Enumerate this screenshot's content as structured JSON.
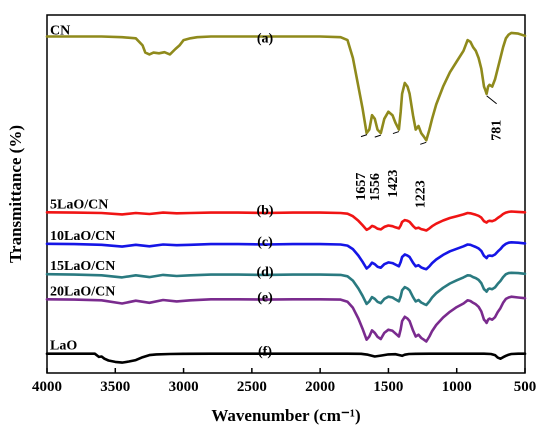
{
  "chart_data": {
    "type": "line",
    "title": "",
    "xlabel": "Wavenumber (cm⁻¹)",
    "ylabel": "Transmittance (%)",
    "xlim": [
      4000,
      500
    ],
    "x_ticks": [
      "4000",
      "3500",
      "3000",
      "2500",
      "2000",
      "1500",
      "1000",
      "500"
    ],
    "x_tick_values": [
      4000,
      3500,
      3000,
      2500,
      2000,
      1500,
      1000,
      500
    ],
    "y_ticks": false,
    "grid": false,
    "legend": "inline labels at left",
    "peak_annotations": [
      {
        "label": "1657",
        "x": 1657
      },
      {
        "label": "1556",
        "x": 1556
      },
      {
        "label": "1423",
        "x": 1423
      },
      {
        "label": "1223",
        "x": 1223
      },
      {
        "label": "781",
        "x": 781
      }
    ],
    "series": [
      {
        "name": "CN",
        "letter": "(a)",
        "color": "#8f8a1c",
        "x": [
          4000,
          3800,
          3600,
          3450,
          3350,
          3300,
          3280,
          3250,
          3220,
          3180,
          3140,
          3100,
          3060,
          3030,
          3000,
          2950,
          2900,
          2800,
          2600,
          2400,
          2200,
          2000,
          1850,
          1800,
          1760,
          1720,
          1690,
          1660,
          1640,
          1620,
          1600,
          1580,
          1556,
          1530,
          1500,
          1470,
          1450,
          1423,
          1410,
          1400,
          1380,
          1360,
          1345,
          1320,
          1300,
          1280,
          1260,
          1240,
          1223,
          1200,
          1180,
          1150,
          1100,
          1050,
          1000,
          950,
          920,
          900,
          880,
          860,
          840,
          820,
          800,
          790,
          781,
          770,
          760,
          740,
          720,
          700,
          680,
          660,
          640,
          620,
          600,
          550,
          500
        ],
        "y": [
          94,
          94,
          94,
          93.8,
          93.5,
          91.5,
          89.5,
          89,
          89.5,
          89.3,
          89.6,
          89,
          90.5,
          91.5,
          93,
          93.5,
          93.8,
          94,
          94,
          94,
          94,
          94,
          93.8,
          93,
          88,
          80,
          74,
          67,
          68,
          72,
          71,
          68,
          67,
          71,
          73,
          72,
          70,
          68,
          73,
          78,
          81,
          80,
          78,
          72,
          68,
          69,
          67,
          66,
          65,
          68,
          71,
          75,
          80,
          84,
          87,
          90,
          93,
          92.5,
          91,
          90,
          88,
          85,
          80,
          79,
          78,
          80,
          80.5,
          80,
          82,
          85,
          88,
          91,
          93.5,
          94.5,
          95,
          94.8,
          94.2
        ]
      },
      {
        "name": "5LaO/CN",
        "letter": "(b)",
        "color": "#f01414",
        "x": [
          4000,
          3800,
          3600,
          3450,
          3350,
          3250,
          3150,
          3050,
          2950,
          2800,
          2600,
          2400,
          2200,
          2000,
          1850,
          1800,
          1760,
          1720,
          1690,
          1660,
          1640,
          1620,
          1600,
          1580,
          1556,
          1530,
          1500,
          1470,
          1450,
          1423,
          1410,
          1400,
          1380,
          1360,
          1345,
          1320,
          1300,
          1280,
          1260,
          1240,
          1223,
          1200,
          1180,
          1150,
          1100,
          1050,
          1000,
          950,
          920,
          900,
          880,
          860,
          840,
          820,
          800,
          790,
          781,
          770,
          760,
          740,
          720,
          700,
          680,
          660,
          640,
          620,
          600,
          550,
          500
        ],
        "y": [
          44.9,
          44.8,
          44.7,
          44.3,
          44.7,
          44.4,
          44.8,
          44.6,
          44.7,
          44.8,
          44.8,
          44.7,
          44.8,
          44.8,
          44.7,
          44.5,
          43.8,
          42.5,
          41.3,
          40,
          40.4,
          41.1,
          40.8,
          40.3,
          40.1,
          40.8,
          41.2,
          41,
          40.7,
          40.4,
          41.2,
          42.2,
          42.7,
          42.5,
          42.2,
          41.1,
          40.4,
          40.6,
          40.2,
          40,
          39.8,
          40.4,
          41,
          41.7,
          42.6,
          43.3,
          43.8,
          44.3,
          44.7,
          44.6,
          44.4,
          44.2,
          43.9,
          43.4,
          42.4,
          42.2,
          42,
          42.4,
          42.5,
          42.4,
          42.7,
          43.3,
          43.8,
          44.4,
          44.8,
          45,
          45.1,
          45,
          44.9
        ]
      },
      {
        "name": "10LaO/CN",
        "letter": "(c)",
        "color": "#1515e6",
        "x": [
          4000,
          3800,
          3600,
          3450,
          3350,
          3250,
          3150,
          3050,
          2950,
          2800,
          2600,
          2400,
          2200,
          2000,
          1850,
          1800,
          1760,
          1720,
          1690,
          1660,
          1640,
          1620,
          1600,
          1580,
          1556,
          1530,
          1500,
          1470,
          1450,
          1423,
          1410,
          1400,
          1380,
          1360,
          1345,
          1320,
          1300,
          1280,
          1260,
          1240,
          1223,
          1200,
          1180,
          1150,
          1100,
          1050,
          1000,
          950,
          920,
          900,
          880,
          860,
          840,
          820,
          800,
          790,
          781,
          770,
          760,
          740,
          720,
          700,
          680,
          660,
          640,
          620,
          600,
          550,
          500
        ],
        "y": [
          36.1,
          36,
          35.8,
          35.3,
          35.8,
          35.4,
          35.9,
          35.7,
          35.8,
          36,
          36,
          35.9,
          36,
          36,
          35.9,
          35.6,
          34.6,
          32.8,
          31.1,
          29.2,
          29.8,
          30.8,
          30.4,
          29.7,
          29.4,
          30.4,
          30.9,
          30.7,
          30.3,
          29.8,
          31,
          32.4,
          33.1,
          32.8,
          32.4,
          30.8,
          29.8,
          30.1,
          29.5,
          29.2,
          29,
          29.8,
          30.7,
          31.7,
          33,
          34,
          34.7,
          35.4,
          35.9,
          35.8,
          35.5,
          35.2,
          34.8,
          34.1,
          32.7,
          32.4,
          32.1,
          32.7,
          32.8,
          32.7,
          33.1,
          33.9,
          34.6,
          35.5,
          36.1,
          36.4,
          36.5,
          36.4,
          36.2
        ]
      },
      {
        "name": "15LaO/CN",
        "letter": "(d)",
        "color": "#2a7a80",
        "x": [
          4000,
          3800,
          3600,
          3450,
          3350,
          3250,
          3150,
          3050,
          2950,
          2800,
          2600,
          2400,
          2200,
          2000,
          1850,
          1800,
          1760,
          1720,
          1690,
          1660,
          1640,
          1620,
          1600,
          1580,
          1556,
          1530,
          1500,
          1470,
          1450,
          1423,
          1410,
          1400,
          1380,
          1360,
          1345,
          1320,
          1300,
          1280,
          1260,
          1240,
          1223,
          1200,
          1180,
          1150,
          1100,
          1050,
          1000,
          950,
          920,
          900,
          880,
          860,
          840,
          820,
          800,
          790,
          781,
          770,
          760,
          740,
          720,
          700,
          680,
          660,
          640,
          620,
          600,
          550,
          500
        ],
        "y": [
          27.6,
          27.5,
          27.3,
          26.7,
          27.3,
          26.8,
          27.4,
          27.1,
          27.3,
          27.5,
          27.5,
          27.4,
          27.5,
          27.5,
          27.4,
          27,
          25.8,
          23.6,
          21.6,
          19.3,
          20,
          21.2,
          20.7,
          19.9,
          19.5,
          20.7,
          21.3,
          21.1,
          20.6,
          20,
          21.4,
          23.1,
          24,
          23.6,
          23.1,
          21.2,
          20,
          20.4,
          19.7,
          19.3,
          19,
          20,
          21.1,
          22.3,
          23.8,
          25,
          25.9,
          26.7,
          27.3,
          27.2,
          26.8,
          26.5,
          26,
          25.1,
          23.4,
          23.1,
          22.7,
          23.4,
          23.6,
          23.4,
          23.9,
          24.9,
          25.7,
          26.8,
          27.6,
          27.9,
          28,
          27.9,
          27.7
        ]
      },
      {
        "name": "20LaO/CN",
        "letter": "(e)",
        "color": "#7a2b8e",
        "x": [
          4000,
          3800,
          3600,
          3450,
          3350,
          3250,
          3150,
          3050,
          2950,
          2800,
          2600,
          2400,
          2200,
          2000,
          1850,
          1800,
          1760,
          1720,
          1690,
          1660,
          1640,
          1620,
          1600,
          1580,
          1556,
          1530,
          1500,
          1470,
          1450,
          1423,
          1410,
          1400,
          1380,
          1360,
          1345,
          1320,
          1300,
          1280,
          1260,
          1240,
          1223,
          1200,
          1180,
          1150,
          1100,
          1050,
          1000,
          950,
          920,
          900,
          880,
          860,
          840,
          820,
          800,
          790,
          781,
          770,
          760,
          740,
          720,
          700,
          680,
          660,
          640,
          620,
          600,
          550,
          500
        ],
        "y": [
          20.6,
          20.5,
          20.3,
          19.4,
          20.2,
          19.6,
          20.4,
          20,
          20.3,
          20.6,
          20.6,
          20.5,
          20.6,
          20.6,
          20.5,
          19.9,
          18.2,
          15.2,
          12.4,
          9.3,
          10.2,
          11.9,
          11.2,
          10.1,
          9.5,
          11.2,
          12.1,
          11.8,
          11.1,
          10.2,
          12.2,
          14.5,
          15.7,
          15.2,
          14.5,
          11.9,
          10.2,
          10.7,
          9.8,
          9.3,
          8.8,
          10.2,
          11.7,
          13.4,
          15.5,
          17.1,
          18.4,
          19.4,
          20.3,
          20.1,
          19.6,
          19.2,
          18.5,
          17.2,
          14.9,
          14.5,
          14,
          14.9,
          15.2,
          14.9,
          15.6,
          17,
          18.1,
          19.6,
          20.7,
          21.1,
          21.3,
          21.1,
          20.9
        ]
      },
      {
        "name": "LaO",
        "letter": "(f)",
        "color": "#000000",
        "x": [
          4000,
          3800,
          3650,
          3620,
          3600,
          3580,
          3550,
          3500,
          3450,
          3400,
          3350,
          3300,
          3250,
          3200,
          3100,
          3000,
          2800,
          2600,
          2400,
          2200,
          2000,
          1800,
          1700,
          1650,
          1600,
          1550,
          1500,
          1450,
          1420,
          1400,
          1380,
          1350,
          1300,
          1200,
          1100,
          1000,
          900,
          800,
          750,
          720,
          700,
          680,
          660,
          640,
          620,
          600,
          550,
          500
        ],
        "y": [
          5.4,
          5.4,
          5.4,
          4.5,
          4.6,
          4,
          3.5,
          3.1,
          2.9,
          3.2,
          3.6,
          4.4,
          5,
          5.2,
          5.3,
          5.35,
          5.4,
          5.4,
          5.4,
          5.4,
          5.4,
          5.4,
          5.35,
          5.1,
          4.6,
          4.9,
          5.2,
          5.25,
          5,
          4.8,
          5.1,
          5.3,
          5.35,
          5.4,
          5.4,
          5.4,
          5.4,
          5.4,
          5.3,
          5,
          4.3,
          4,
          4.4,
          4.8,
          5.1,
          5.3,
          5.4,
          5.4
        ]
      }
    ]
  }
}
